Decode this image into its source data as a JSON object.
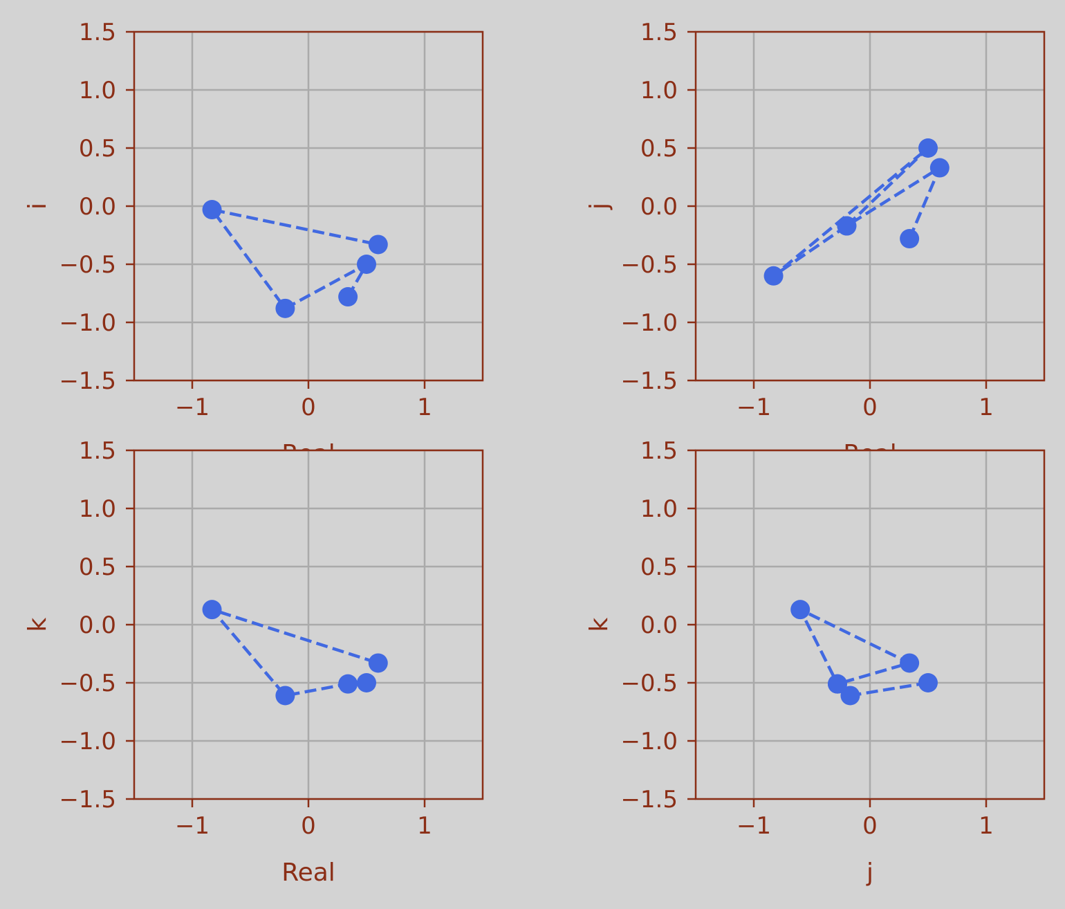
{
  "figure": {
    "background": "#d3d3d3",
    "axes_color": "#8b2e16",
    "grid_color": "#aaaaaa",
    "series_color": "#4169e1"
  },
  "chart_data": [
    {
      "type": "line",
      "xlabel": "Real",
      "ylabel": "i",
      "xlim": [
        -1.5,
        1.5
      ],
      "ylim": [
        -1.5,
        1.5
      ],
      "xticks": [
        "-1",
        "0",
        "1"
      ],
      "yticks": [
        "1.5",
        "1.0",
        "0.5",
        "0.0",
        "-0.5",
        "-1.0",
        "-1.5"
      ],
      "grid": true,
      "line_style": "dashed",
      "marker": "circle",
      "points": [
        {
          "x": 0.34,
          "y": -0.78
        },
        {
          "x": 0.5,
          "y": -0.5
        },
        {
          "x": -0.2,
          "y": -0.88
        },
        {
          "x": -0.83,
          "y": -0.03
        },
        {
          "x": 0.6,
          "y": -0.33
        }
      ]
    },
    {
      "type": "line",
      "xlabel": "Real",
      "ylabel": "j",
      "xlim": [
        -1.5,
        1.5
      ],
      "ylim": [
        -1.5,
        1.5
      ],
      "xticks": [
        "-1",
        "0",
        "1"
      ],
      "yticks": [
        "1.5",
        "1.0",
        "0.5",
        "0.0",
        "-0.5",
        "-1.0",
        "-1.5"
      ],
      "grid": true,
      "line_style": "dashed",
      "marker": "circle",
      "points": [
        {
          "x": 0.34,
          "y": -0.28
        },
        {
          "x": 0.6,
          "y": 0.33
        },
        {
          "x": -0.2,
          "y": -0.17
        },
        {
          "x": -0.83,
          "y": -0.6
        },
        {
          "x": 0.5,
          "y": 0.5
        },
        {
          "x": -0.2,
          "y": -0.17
        }
      ]
    },
    {
      "type": "line",
      "xlabel": "Real",
      "ylabel": "k",
      "xlim": [
        -1.5,
        1.5
      ],
      "ylim": [
        -1.5,
        1.5
      ],
      "xticks": [
        "-1",
        "0",
        "1"
      ],
      "yticks": [
        "1.5",
        "1.0",
        "0.5",
        "0.0",
        "-0.5",
        "-1.0",
        "-1.5"
      ],
      "grid": true,
      "line_style": "dashed",
      "marker": "circle",
      "points": [
        {
          "x": 0.5,
          "y": -0.5
        },
        {
          "x": 0.34,
          "y": -0.51
        },
        {
          "x": -0.2,
          "y": -0.61
        },
        {
          "x": -0.83,
          "y": 0.13
        },
        {
          "x": 0.6,
          "y": -0.33
        }
      ]
    },
    {
      "type": "line",
      "xlabel": "j",
      "ylabel": "k",
      "xlim": [
        -1.5,
        1.5
      ],
      "ylim": [
        -1.5,
        1.5
      ],
      "xticks": [
        "-1",
        "0",
        "1"
      ],
      "yticks": [
        "1.5",
        "1.0",
        "0.5",
        "0.0",
        "-0.5",
        "-1.0",
        "-1.5"
      ],
      "grid": true,
      "line_style": "dashed",
      "marker": "circle",
      "points": [
        {
          "x": 0.5,
          "y": -0.5
        },
        {
          "x": -0.17,
          "y": -0.61
        },
        {
          "x": -0.28,
          "y": -0.51
        },
        {
          "x": 0.34,
          "y": -0.33
        },
        {
          "x": -0.6,
          "y": 0.13
        },
        {
          "x": -0.28,
          "y": -0.51
        }
      ]
    }
  ]
}
